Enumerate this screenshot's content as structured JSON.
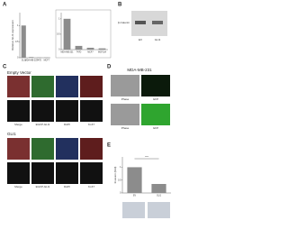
{
  "panel_a": {
    "label": "A",
    "main": {
      "type": "bar",
      "y_label": "Relative GLI1 expression",
      "categories": [
        "GLI1",
        "MDA-MB-231",
        "T47D",
        "MCF7"
      ],
      "values": [
        1.0,
        0.02,
        0.01,
        0.01
      ],
      "color": "#8c8c8c",
      "ylim": [
        0,
        1.4
      ],
      "yticks": [
        0,
        0.5,
        1
      ]
    },
    "inset": {
      "type": "bar",
      "categories": [
        "MDA-MB-231",
        "T47D",
        "MCF7",
        "MCF10A"
      ],
      "values": [
        1.0,
        0.12,
        0.06,
        0.04
      ],
      "color": "#8c8c8c",
      "ylim": [
        0,
        1.2
      ],
      "yticks": [
        0,
        0.5,
        1
      ]
    }
  },
  "panel_b": {
    "label": "B",
    "band_label": "β-Catenin",
    "lanes": [
      "EV",
      "GLI1"
    ]
  },
  "panel_c": {
    "label": "C",
    "groups": [
      {
        "title": "Empty Vector",
        "channels": [
          "Merge",
          "EGFP-GLI1",
          "DAPI",
          "Ki-67"
        ]
      },
      {
        "title": "GLI1",
        "channels": [
          "Merge",
          "EGFP-GLI1",
          "DAPI",
          "Ki-67"
        ]
      }
    ]
  },
  "panel_d": {
    "label": "D",
    "title": "MDA-MB-231",
    "captions": [
      "Phase",
      "GFP",
      "Phase",
      "GFP"
    ]
  },
  "panel_e": {
    "label": "E",
    "chart": {
      "type": "bar",
      "y_label": "Invasion (fold)",
      "categories": [
        "EV",
        "GLI1"
      ],
      "values": [
        1.0,
        0.35
      ],
      "color": "#8c8c8c",
      "ylim": [
        0,
        1.4
      ],
      "yticks": [
        0,
        0.5,
        1
      ],
      "annotation": "***"
    }
  }
}
